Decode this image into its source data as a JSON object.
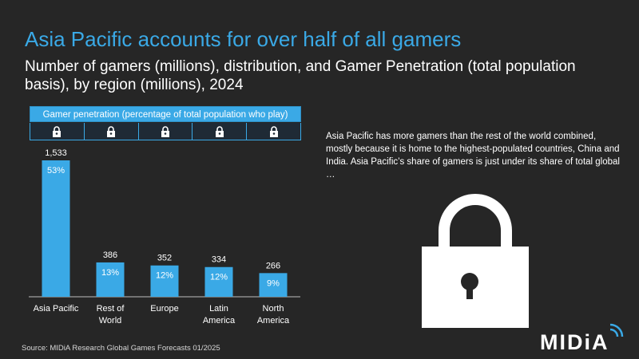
{
  "title": "Asia Pacific accounts for over half of all gamers",
  "subtitle": "Number of gamers (millions), distribution, and Gamer Penetration (total population basis), by region (millions), 2024",
  "penetration_header": "Gamer penetration (percentage of total population who play)",
  "side_text": "Asia Pacific has more gamers than the rest of the world combined, mostly because it is home to the highest-populated countries, China and India. Asia Pacific’s share of gamers is just under its share of total global …",
  "source": "Source: MIDiA Research Global Games Forecasts 01/2025",
  "logo": "MIDiA",
  "icons": {
    "penetration_locks": "padlock-icon",
    "big_lock": "padlock-icon",
    "logo_arc": "signal-arc-icon"
  },
  "colors": {
    "accent": "#3aa9e6",
    "background": "#262626",
    "text": "#ffffff"
  },
  "chart_data": {
    "type": "bar",
    "categories": [
      "Asia Pacific",
      "Rest of\nWorld",
      "Europe",
      "Latin\nAmerica",
      "North\nAmerica"
    ],
    "values": [
      1533,
      386,
      352,
      334,
      266
    ],
    "value_labels": [
      "1,533",
      "386",
      "352",
      "334",
      "266"
    ],
    "share_labels": [
      "53%",
      "13%",
      "12%",
      "12%",
      "9%"
    ],
    "ylim": [
      0,
      1600
    ],
    "grid": false,
    "legend": "none"
  }
}
